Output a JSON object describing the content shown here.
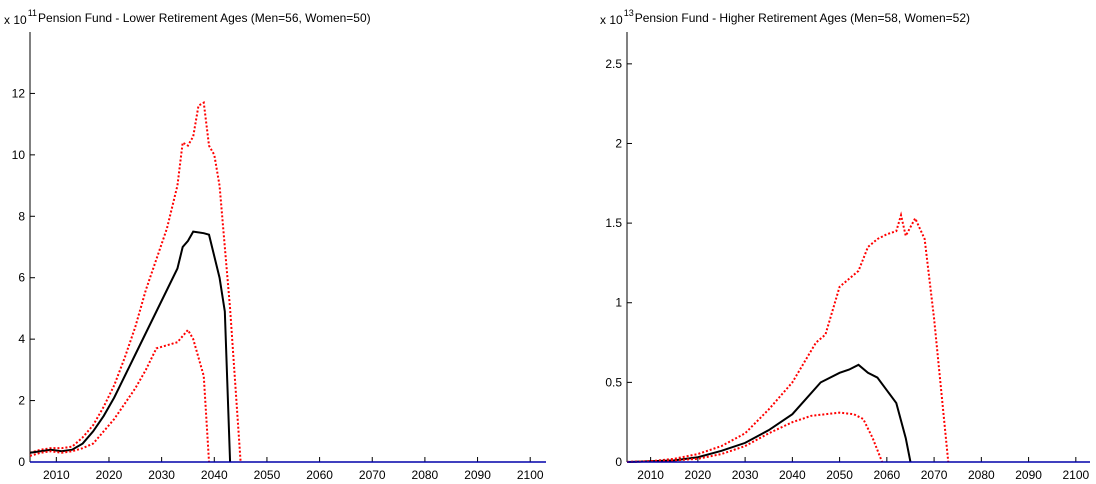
{
  "chart_data": [
    {
      "type": "line",
      "exponent_prefix": "x 10",
      "exponent": "11",
      "title": "Pension Fund - Lower Retirement Ages (Men=56, Women=50)",
      "xlim": [
        2005,
        2103
      ],
      "ylim": [
        0,
        14
      ],
      "xticks": [
        2010,
        2020,
        2030,
        2040,
        2050,
        2060,
        2070,
        2080,
        2090,
        2100
      ],
      "yticks": [
        0,
        2,
        4,
        6,
        8,
        10,
        12
      ],
      "series": [
        {
          "color": "#ff0000",
          "dash": "dotted",
          "x": [
            2005,
            2007,
            2009,
            2011,
            2013,
            2015,
            2017,
            2019,
            2021,
            2023,
            2025,
            2027,
            2029,
            2031,
            2033,
            2034,
            2035,
            2036,
            2037,
            2038,
            2039,
            2040,
            2041,
            2042,
            2043,
            2044,
            2045
          ],
          "values": [
            0.3,
            0.4,
            0.45,
            0.45,
            0.5,
            0.8,
            1.2,
            1.8,
            2.5,
            3.4,
            4.4,
            5.6,
            6.6,
            7.6,
            9.0,
            10.4,
            10.3,
            10.6,
            11.6,
            11.7,
            10.3,
            10.0,
            9.0,
            7.0,
            5.0,
            2.5,
            0
          ]
        },
        {
          "color": "#000000",
          "dash": "solid",
          "x": [
            2005,
            2007,
            2009,
            2011,
            2013,
            2015,
            2017,
            2019,
            2021,
            2023,
            2025,
            2027,
            2029,
            2031,
            2033,
            2034,
            2035,
            2036,
            2038,
            2039,
            2041,
            2042,
            2043
          ],
          "values": [
            0.3,
            0.35,
            0.4,
            0.35,
            0.4,
            0.6,
            1.0,
            1.5,
            2.1,
            2.8,
            3.5,
            4.2,
            4.9,
            5.6,
            6.3,
            7.0,
            7.2,
            7.5,
            7.45,
            7.4,
            6.0,
            4.9,
            0
          ]
        },
        {
          "color": "#ff0000",
          "dash": "dotted",
          "x": [
            2005,
            2007,
            2009,
            2011,
            2013,
            2015,
            2017,
            2019,
            2021,
            2023,
            2025,
            2027,
            2029,
            2031,
            2033,
            2035,
            2036,
            2037,
            2038,
            2039
          ],
          "values": [
            0.2,
            0.3,
            0.35,
            0.3,
            0.35,
            0.45,
            0.6,
            1.0,
            1.4,
            1.9,
            2.4,
            3.0,
            3.7,
            3.8,
            3.9,
            4.3,
            4.0,
            3.4,
            2.8,
            0
          ]
        }
      ]
    },
    {
      "type": "line",
      "exponent_prefix": "x 10",
      "exponent": "13",
      "title": "Pension Fund - Higher Retirement Ages (Men=58, Women=52)",
      "xlim": [
        2005,
        2103
      ],
      "ylim": [
        0,
        2.7
      ],
      "xticks": [
        2010,
        2020,
        2030,
        2040,
        2050,
        2060,
        2070,
        2080,
        2090,
        2100
      ],
      "yticks": [
        0,
        0.5,
        1,
        1.5,
        2,
        2.5
      ],
      "series": [
        {
          "color": "#ff0000",
          "dash": "dotted",
          "x": [
            2005,
            2010,
            2015,
            2020,
            2025,
            2030,
            2035,
            2040,
            2043,
            2045,
            2047,
            2050,
            2052,
            2054,
            2056,
            2058,
            2060,
            2062,
            2063,
            2064,
            2066,
            2068,
            2070,
            2072,
            2073
          ],
          "values": [
            0,
            0.005,
            0.02,
            0.05,
            0.1,
            0.18,
            0.33,
            0.5,
            0.65,
            0.75,
            0.8,
            1.1,
            1.15,
            1.2,
            1.35,
            1.4,
            1.43,
            1.45,
            1.55,
            1.42,
            1.53,
            1.4,
            0.9,
            0.3,
            0
          ]
        },
        {
          "color": "#000000",
          "dash": "solid",
          "x": [
            2005,
            2010,
            2015,
            2020,
            2025,
            2030,
            2035,
            2040,
            2043,
            2046,
            2050,
            2052,
            2054,
            2056,
            2058,
            2060,
            2062,
            2064,
            2065
          ],
          "values": [
            0,
            0.005,
            0.01,
            0.03,
            0.07,
            0.12,
            0.2,
            0.3,
            0.4,
            0.5,
            0.56,
            0.58,
            0.61,
            0.56,
            0.53,
            0.45,
            0.37,
            0.15,
            0
          ]
        },
        {
          "color": "#ff0000",
          "dash": "dotted",
          "x": [
            2005,
            2010,
            2015,
            2020,
            2025,
            2030,
            2035,
            2040,
            2044,
            2050,
            2053,
            2055,
            2057,
            2059
          ],
          "values": [
            0,
            0.005,
            0.01,
            0.02,
            0.05,
            0.1,
            0.18,
            0.25,
            0.29,
            0.31,
            0.3,
            0.27,
            0.15,
            0
          ]
        }
      ]
    }
  ]
}
